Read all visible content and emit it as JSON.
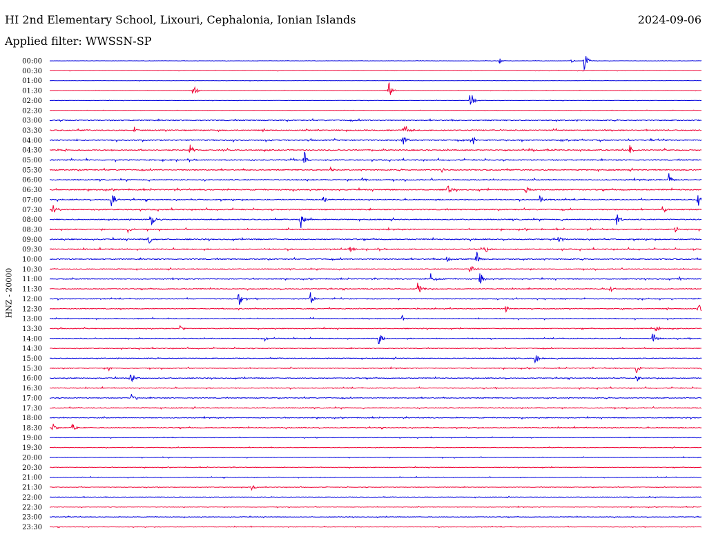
{
  "header": {
    "title": "HI 2nd Elementary School, Lixouri, Cephalonia, Ionian Islands",
    "date": "2024-09-06",
    "filter": "Applied filter: WWSSN-SP"
  },
  "chart_data": {
    "type": "line",
    "ylabel": "HNZ - 20000",
    "series_colors": [
      "#0000dd",
      "#ee0033"
    ],
    "rows": [
      {
        "label": "00:00",
        "events": [
          [
            0.82,
            1.0
          ],
          [
            0.69,
            0.25
          ],
          [
            0.8,
            0.18
          ]
        ]
      },
      {
        "label": "00:30",
        "events": []
      },
      {
        "label": "01:00",
        "events": []
      },
      {
        "label": "01:30",
        "events": [
          [
            0.22,
            0.85
          ],
          [
            0.52,
            0.9
          ]
        ]
      },
      {
        "label": "02:00",
        "events": [
          [
            0.645,
            1.0
          ]
        ]
      },
      {
        "label": "02:30",
        "events": []
      },
      {
        "label": "03:00",
        "events": []
      },
      {
        "label": "03:30",
        "events": [
          [
            0.545,
            0.8
          ],
          [
            0.13,
            0.35
          ]
        ]
      },
      {
        "label": "04:00",
        "events": [
          [
            0.542,
            0.55
          ],
          [
            0.65,
            0.4
          ]
        ]
      },
      {
        "label": "04:30",
        "events": [
          [
            0.215,
            0.55
          ],
          [
            0.89,
            0.5
          ]
        ]
      },
      {
        "label": "05:00",
        "events": [
          [
            0.39,
            0.95
          ]
        ]
      },
      {
        "label": "05:30",
        "events": [
          [
            0.6,
            0.35
          ],
          [
            0.43,
            0.3
          ]
        ]
      },
      {
        "label": "06:00",
        "events": [
          [
            0.95,
            0.6
          ],
          [
            0.48,
            0.3
          ]
        ]
      },
      {
        "label": "06:30",
        "events": [
          [
            0.61,
            0.55
          ],
          [
            0.73,
            0.45
          ]
        ]
      },
      {
        "label": "07:00",
        "events": [
          [
            0.095,
            0.8
          ],
          [
            0.42,
            0.5
          ],
          [
            0.75,
            0.7
          ],
          [
            0.995,
            0.9
          ]
        ]
      },
      {
        "label": "07:30",
        "events": [
          [
            0.005,
            0.45
          ],
          [
            0.94,
            0.45
          ]
        ]
      },
      {
        "label": "08:00",
        "events": [
          [
            0.155,
            0.9
          ],
          [
            0.385,
            0.85
          ],
          [
            0.87,
            0.6
          ]
        ]
      },
      {
        "label": "08:30",
        "events": [
          [
            0.96,
            0.5
          ],
          [
            0.12,
            0.4
          ]
        ]
      },
      {
        "label": "09:00",
        "events": [
          [
            0.152,
            0.5
          ],
          [
            0.78,
            0.35
          ]
        ]
      },
      {
        "label": "09:30",
        "events": [
          [
            0.46,
            0.4
          ],
          [
            0.67,
            0.35
          ]
        ]
      },
      {
        "label": "10:00",
        "events": [
          [
            0.655,
            0.75
          ],
          [
            0.61,
            0.35
          ]
        ]
      },
      {
        "label": "10:30",
        "events": [
          [
            0.645,
            0.5
          ]
        ]
      },
      {
        "label": "11:00",
        "events": [
          [
            0.585,
            0.65
          ],
          [
            0.66,
            0.75
          ],
          [
            0.965,
            0.3
          ]
        ]
      },
      {
        "label": "11:30",
        "events": [
          [
            0.565,
            0.75
          ],
          [
            0.86,
            0.35
          ]
        ]
      },
      {
        "label": "12:00",
        "events": [
          [
            0.29,
            0.8
          ],
          [
            0.4,
            0.65
          ]
        ]
      },
      {
        "label": "12:30",
        "events": [
          [
            0.7,
            0.45
          ],
          [
            0.995,
            0.75
          ]
        ]
      },
      {
        "label": "13:00",
        "events": [
          [
            0.54,
            0.35
          ]
        ]
      },
      {
        "label": "13:30",
        "events": [
          [
            0.2,
            0.35
          ],
          [
            0.93,
            0.35
          ]
        ]
      },
      {
        "label": "14:00",
        "events": [
          [
            0.505,
            0.65
          ],
          [
            0.925,
            0.7
          ],
          [
            0.33,
            0.3
          ]
        ]
      },
      {
        "label": "14:30",
        "events": []
      },
      {
        "label": "15:00",
        "events": [
          [
            0.745,
            0.65
          ]
        ]
      },
      {
        "label": "15:30",
        "events": [
          [
            0.9,
            0.55
          ],
          [
            0.09,
            0.3
          ]
        ]
      },
      {
        "label": "16:00",
        "events": [
          [
            0.125,
            0.8
          ],
          [
            0.9,
            0.5
          ]
        ]
      },
      {
        "label": "16:30",
        "events": []
      },
      {
        "label": "17:00",
        "events": [
          [
            0.125,
            0.45
          ]
        ]
      },
      {
        "label": "17:30",
        "events": []
      },
      {
        "label": "18:00",
        "events": []
      },
      {
        "label": "18:30",
        "events": [
          [
            0.005,
            0.55
          ],
          [
            0.035,
            0.5
          ]
        ]
      },
      {
        "label": "19:00",
        "events": []
      },
      {
        "label": "19:30",
        "events": []
      },
      {
        "label": "20:00",
        "events": []
      },
      {
        "label": "20:30",
        "events": []
      },
      {
        "label": "21:00",
        "events": []
      },
      {
        "label": "21:30",
        "events": [
          [
            0.31,
            0.3
          ]
        ]
      },
      {
        "label": "22:00",
        "events": []
      },
      {
        "label": "22:30",
        "events": []
      },
      {
        "label": "23:00",
        "events": []
      },
      {
        "label": "23:30",
        "events": []
      }
    ]
  }
}
